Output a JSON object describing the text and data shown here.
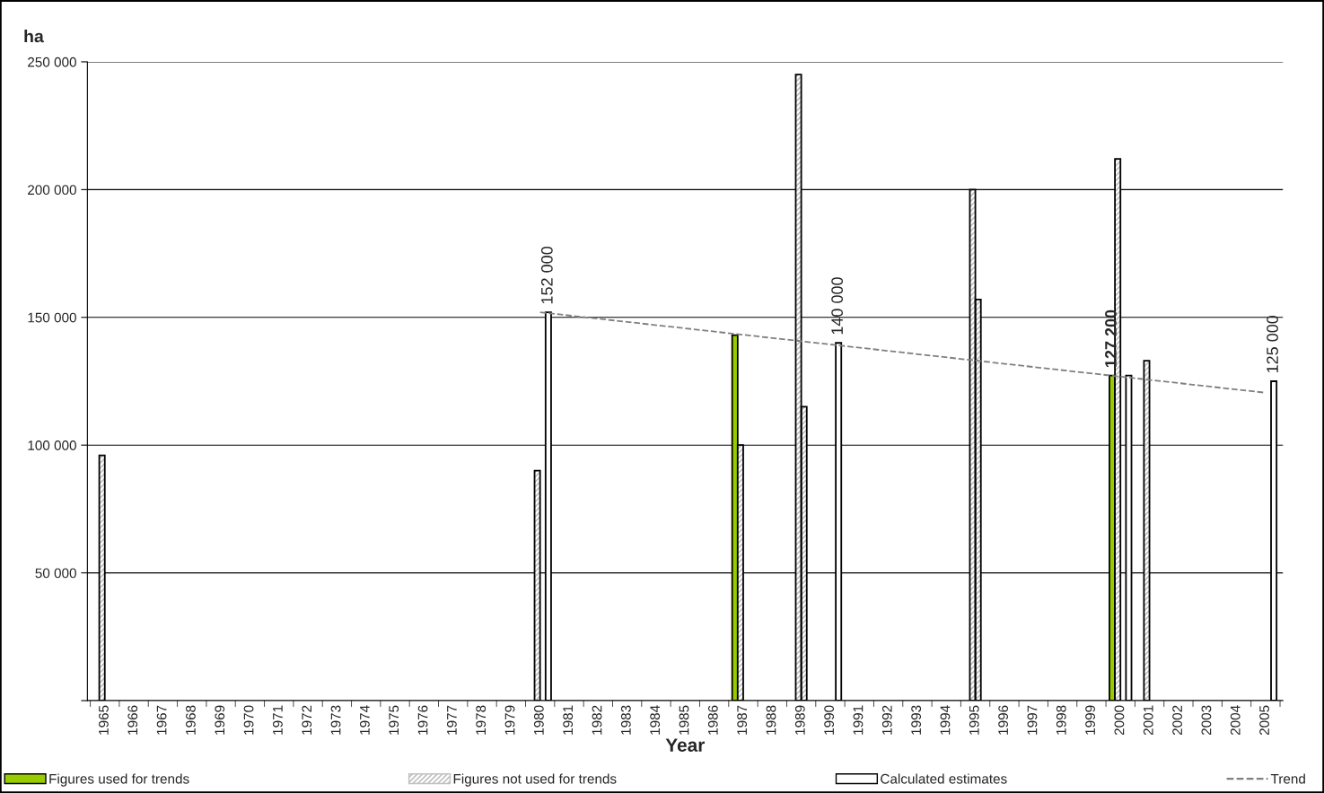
{
  "chart_data": {
    "type": "bar",
    "xlabel": "Year",
    "ylabel": "ha",
    "categories": [
      "1965",
      "1966",
      "1967",
      "1968",
      "1969",
      "1970",
      "1971",
      "1972",
      "1973",
      "1974",
      "1975",
      "1976",
      "1977",
      "1978",
      "1979",
      "1980",
      "1981",
      "1982",
      "1983",
      "1984",
      "1985",
      "1986",
      "1987",
      "1988",
      "1989",
      "1990",
      "1991",
      "1992",
      "1993",
      "1994",
      "1995",
      "1996",
      "1997",
      "1998",
      "1999",
      "2000",
      "2001",
      "2002",
      "2003",
      "2004",
      "2005"
    ],
    "series": [
      {
        "name": "Figures used for trends",
        "color": "#99cc00",
        "values": [
          null,
          null,
          null,
          null,
          null,
          null,
          null,
          null,
          null,
          null,
          null,
          null,
          null,
          null,
          null,
          null,
          null,
          null,
          null,
          null,
          null,
          null,
          143000,
          null,
          null,
          null,
          null,
          null,
          null,
          null,
          null,
          null,
          null,
          null,
          null,
          127200,
          null,
          null,
          null,
          null,
          null
        ],
        "value_labels": [
          null,
          null,
          null,
          null,
          null,
          null,
          null,
          null,
          null,
          null,
          null,
          null,
          null,
          null,
          null,
          null,
          null,
          null,
          null,
          null,
          null,
          null,
          null,
          null,
          null,
          null,
          null,
          null,
          null,
          null,
          null,
          null,
          null,
          null,
          null,
          "127 200",
          null,
          null,
          null,
          null,
          null
        ]
      },
      {
        "name": "Figures not used for trends",
        "color": "#c0c0c0",
        "values": [
          96000,
          null,
          null,
          null,
          null,
          null,
          null,
          null,
          null,
          null,
          null,
          null,
          null,
          null,
          null,
          90000,
          null,
          null,
          null,
          null,
          null,
          null,
          100000,
          null,
          245000,
          null,
          null,
          null,
          null,
          null,
          200000,
          null,
          null,
          null,
          null,
          212000,
          133000,
          null,
          null,
          null,
          null
        ]
      },
      {
        "color": "#c0c0c0",
        "values": [
          null,
          null,
          null,
          null,
          null,
          null,
          null,
          null,
          null,
          null,
          null,
          null,
          null,
          null,
          null,
          null,
          null,
          null,
          null,
          null,
          null,
          null,
          null,
          null,
          115000,
          null,
          null,
          null,
          null,
          null,
          157000,
          null,
          null,
          null,
          null,
          null,
          null,
          null,
          null,
          null,
          null
        ]
      },
      {
        "name": "Calculated estimates",
        "color": "#ffffff",
        "values": [
          null,
          null,
          null,
          null,
          null,
          null,
          null,
          null,
          null,
          null,
          null,
          null,
          null,
          null,
          null,
          152000,
          null,
          null,
          null,
          null,
          null,
          null,
          null,
          null,
          null,
          140000,
          null,
          null,
          null,
          null,
          null,
          null,
          null,
          null,
          null,
          127200,
          null,
          null,
          null,
          null,
          125000
        ],
        "value_labels": [
          null,
          null,
          null,
          null,
          null,
          null,
          null,
          null,
          null,
          null,
          null,
          null,
          null,
          null,
          null,
          "152 000",
          null,
          null,
          null,
          null,
          null,
          null,
          null,
          null,
          null,
          "140 000",
          null,
          null,
          null,
          null,
          null,
          null,
          null,
          null,
          null,
          null,
          null,
          null,
          null,
          null,
          "125 000"
        ]
      },
      {
        "name": "Trend",
        "type": "line",
        "color": "#808080",
        "line_style": "dashed",
        "marker": "none",
        "values": [
          null,
          null,
          null,
          null,
          null,
          null,
          null,
          null,
          null,
          null,
          null,
          null,
          null,
          null,
          null,
          152000,
          null,
          null,
          null,
          null,
          null,
          null,
          null,
          null,
          null,
          null,
          null,
          null,
          null,
          null,
          null,
          null,
          null,
          null,
          null,
          null,
          null,
          null,
          null,
          null,
          120500
        ]
      }
    ],
    "ylim": [
      0,
      250000
    ],
    "yticks": [
      {
        "value": 0,
        "label": null
      },
      {
        "value": 50000,
        "label": "50 000"
      },
      {
        "value": 100000,
        "label": "100 000"
      },
      {
        "value": 150000,
        "label": "150 000"
      },
      {
        "value": 200000,
        "label": "200 000"
      },
      {
        "value": 250000,
        "label": "250 000"
      }
    ],
    "grid": "y",
    "legend": "bottom"
  }
}
